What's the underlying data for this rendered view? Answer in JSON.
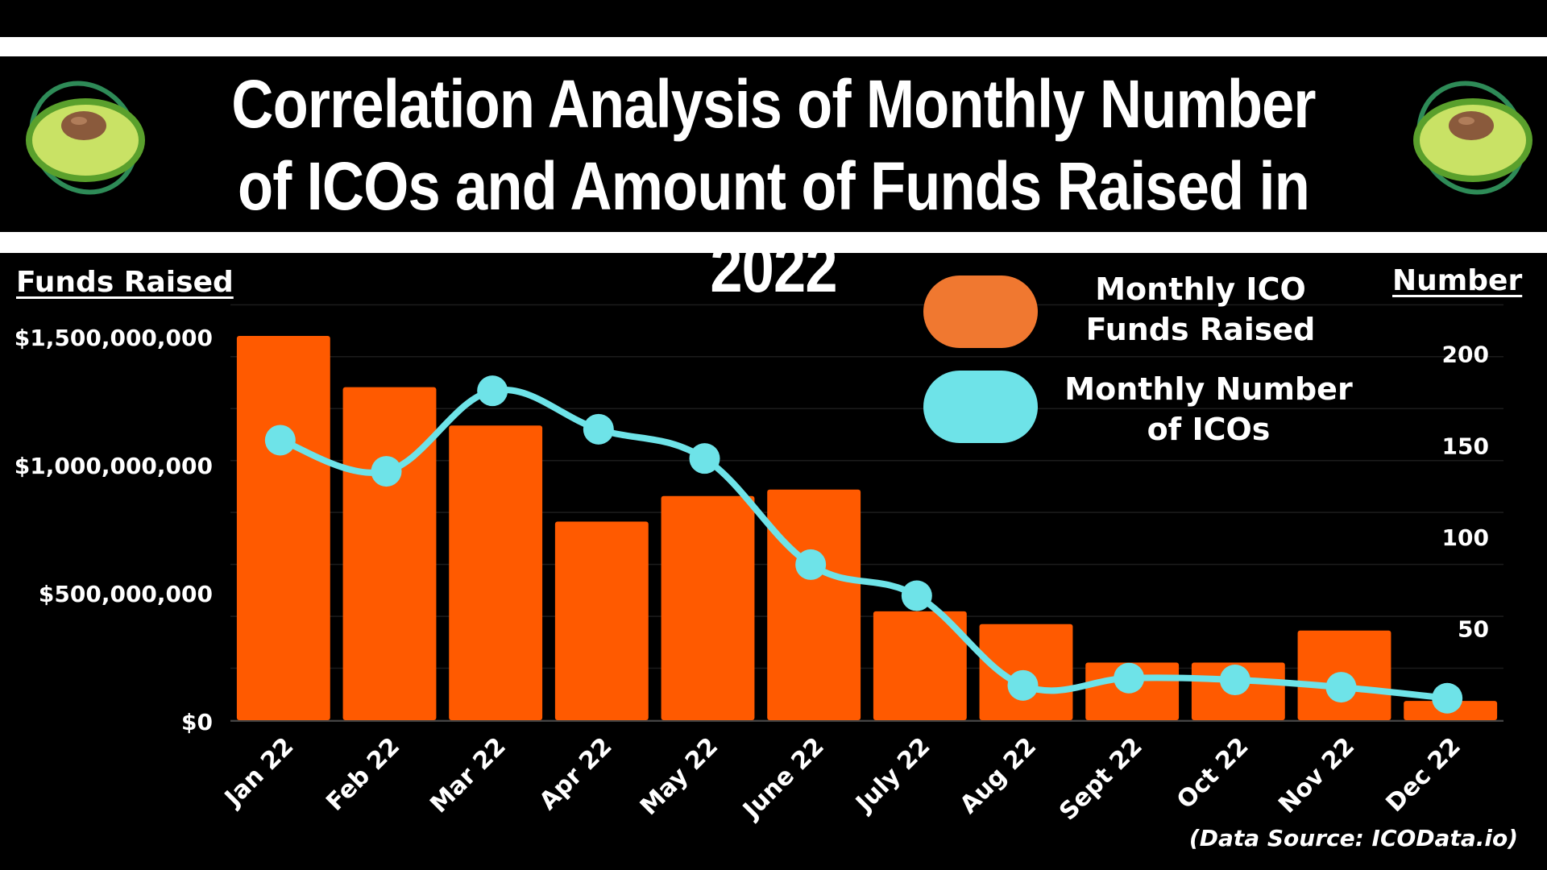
{
  "header": {
    "title": "Correlation Analysis of Monthly Number of ICOs and Amount of Funds Raised in 2022",
    "logo_icon": "avocado-planet-icon"
  },
  "colors": {
    "bar": "#ff5a00",
    "line": "#6ee3e8",
    "legend_bar": "#f07830",
    "grid": "#1c1c1c",
    "background": "#000000"
  },
  "source_note": "(Data Source: ICOData.io)",
  "chart_data": {
    "type": "bar+line",
    "title": "Correlation Analysis of Monthly Number of ICOs and Amount of Funds Raised in 2022",
    "categories": [
      "Jan 22",
      "Feb 22",
      "Mar 22",
      "Apr 22",
      "May 22",
      "June 22",
      "July 22",
      "Aug 22",
      "Sept 22",
      "Oct 22",
      "Nov 22",
      "Dec 22"
    ],
    "left_axis": {
      "label": "Funds Raised",
      "ylim": [
        0,
        1500000000
      ],
      "ticks": [
        0,
        500000000,
        1000000000,
        1500000000
      ],
      "tick_labels": [
        "$0",
        "$500,000,000",
        "$1,000,000,000",
        "$1,500,000,000"
      ]
    },
    "right_axis": {
      "label": "Number",
      "ylim": [
        0,
        210
      ],
      "ticks": [
        50,
        100,
        150,
        200
      ],
      "tick_labels": [
        "50",
        "100",
        "150",
        "200"
      ]
    },
    "series": [
      {
        "name": "Monthly ICO Funds Raised",
        "type": "bar",
        "axis": "left",
        "values": [
          1500000000,
          1300000000,
          1150000000,
          775000000,
          875000000,
          900000000,
          425000000,
          375000000,
          225000000,
          225000000,
          350000000,
          75000000
        ]
      },
      {
        "name": "Monthly Number of ICOs",
        "type": "line",
        "axis": "right",
        "values": [
          153,
          136,
          180,
          159,
          143,
          85,
          68,
          19,
          23,
          22,
          18,
          12
        ]
      }
    ],
    "legend": {
      "position": "top-right",
      "labels": [
        "Monthly ICO\nFunds Raised",
        "Monthly Number\nof ICOs"
      ]
    },
    "grid": true
  }
}
